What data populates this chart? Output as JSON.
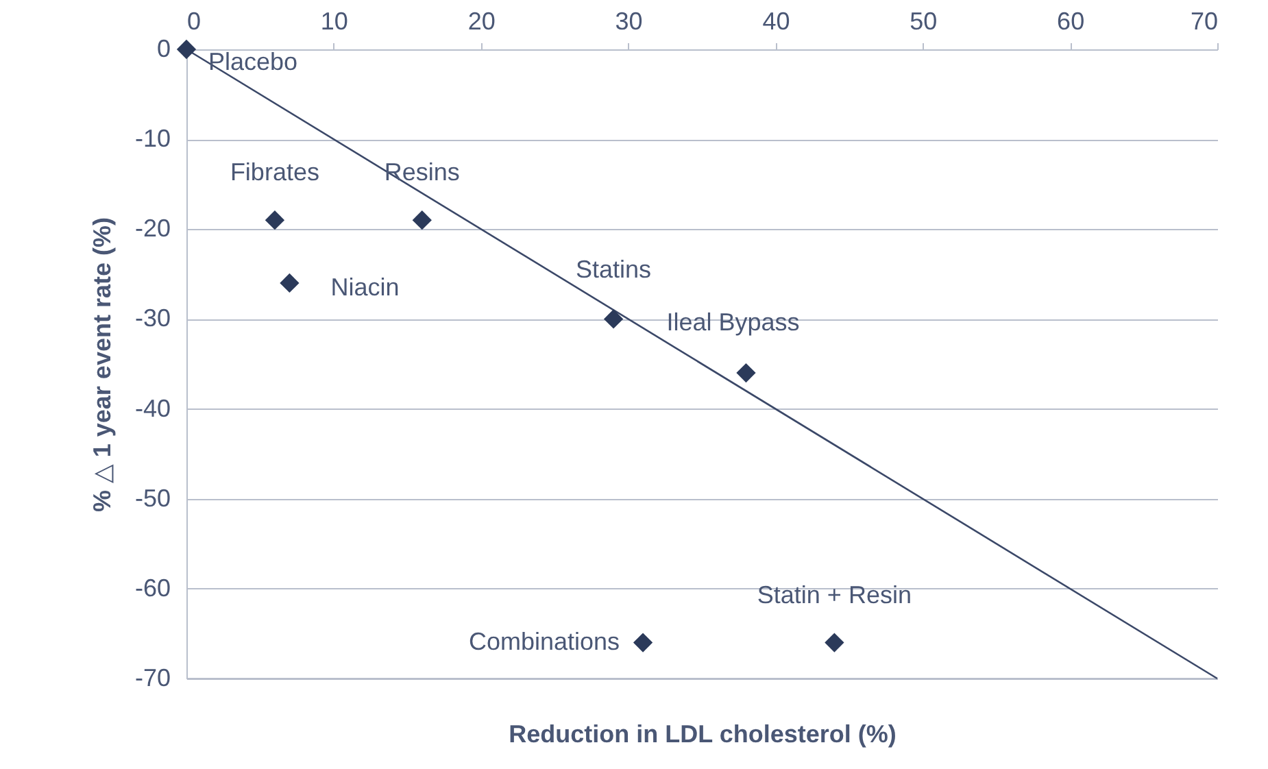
{
  "chart_data": {
    "type": "scatter",
    "xlabel": "Reduction in LDL cholesterol (%)",
    "ylabel": "% △ 1 year event rate (%)",
    "xlim": [
      0,
      70
    ],
    "xticks": [
      0,
      10,
      20,
      30,
      40,
      50,
      60,
      70
    ],
    "ylim": [
      -70,
      0
    ],
    "yticks": [
      -70,
      -60,
      -50,
      -40,
      -30,
      -20,
      -10,
      0
    ],
    "grid": "y",
    "marker": "diamond",
    "series": [
      {
        "type": "line",
        "marker": "none",
        "color": "#3b4868",
        "x": [
          0,
          70
        ],
        "values": [
          0,
          -70
        ]
      },
      {
        "color": "#2b3a5a",
        "x": [
          0,
          6,
          16,
          7,
          29,
          38,
          31,
          44
        ],
        "values": [
          0,
          -19,
          -19,
          -26,
          -30,
          -36,
          -66,
          -66
        ]
      }
    ],
    "annotations": [
      {
        "text": "Placebo",
        "x": 0,
        "y": 0
      },
      {
        "text": "Fibrates",
        "x": 6,
        "y": -19
      },
      {
        "text": "Resins",
        "x": 16,
        "y": -19
      },
      {
        "text": "Niacin",
        "x": 7,
        "y": -26
      },
      {
        "text": "Statins",
        "x": 29,
        "y": -30
      },
      {
        "text": "Ileal Bypass",
        "x": 38,
        "y": -36
      },
      {
        "text": "Combinations",
        "x": 31,
        "y": -66
      },
      {
        "text": "Statin + Resin",
        "x": 44,
        "y": -66
      }
    ]
  }
}
